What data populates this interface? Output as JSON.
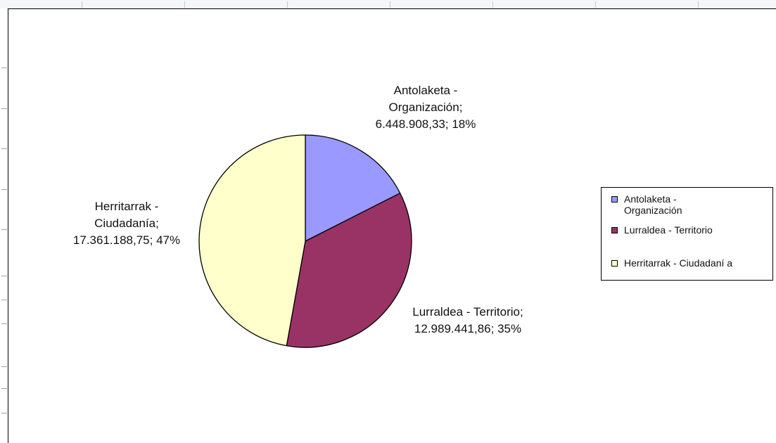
{
  "chart_data": {
    "type": "pie",
    "slices": [
      {
        "label": "Antolaketa - Organización",
        "value": 6448908.33,
        "value_text": "6.448.908,33",
        "percent": 18,
        "percent_text": "18%",
        "color": "#9999ff",
        "data_label_lines": [
          "Antolaketa -",
          "Organización;",
          "6.448.908,33; 18%"
        ],
        "legend_lines": [
          "Antolaketa -",
          "Organización"
        ]
      },
      {
        "label": "Lurraldea - Territorio",
        "value": 12989441.86,
        "value_text": "12.989.441,86",
        "percent": 35,
        "percent_text": "35%",
        "color": "#993366",
        "data_label_lines": [
          "Lurraldea - Territorio;",
          "12.989.441,86; 35%"
        ],
        "legend_lines": [
          "Lurraldea - Territorio"
        ]
      },
      {
        "label": "Herritarrak - Ciudadanía",
        "value": 17361188.75,
        "value_text": "17.361.188,75",
        "percent": 47,
        "percent_text": "47%",
        "color": "#ffffcc",
        "data_label_lines": [
          "Herritarrak -",
          "Ciudadanía;",
          "17.361.188,75; 47%"
        ],
        "legend_lines": [
          "Herritarrak - Ciudadaní a"
        ]
      }
    ],
    "start_angle": "12 o'clock",
    "direction": "clockwise",
    "legend_placement": "right",
    "outline_color": "#000000"
  }
}
